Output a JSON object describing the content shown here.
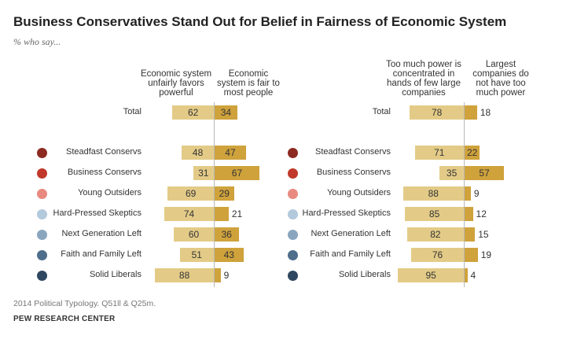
{
  "title": "Business Conservatives Stand Out for Belief in Fairness of Economic System",
  "subtitle": "% who say...",
  "note": "2014 Political Typology. Q51ll & Q25m.",
  "source": "PEW RESEARCH CENTER",
  "colors": {
    "left_bar": "#e3cb87",
    "right_bar": "#cfa23c"
  },
  "chart_data": [
    {
      "type": "bar",
      "orientation": "diverging-horizontal",
      "left_header": "Economic system unfairly favors powerful",
      "right_header": "Economic system is fair to most people",
      "categories": [
        "Total",
        "Steadfast Conservs",
        "Business Conservs",
        "Young Outsiders",
        "Hard-Pressed Skeptics",
        "Next Generation Left",
        "Faith and Family Left",
        "Solid Liberals"
      ],
      "series": [
        {
          "name": "Economic system unfairly favors powerful",
          "values": [
            62,
            48,
            31,
            69,
            74,
            60,
            51,
            88
          ]
        },
        {
          "name": "Economic system is fair to most people",
          "values": [
            34,
            47,
            67,
            29,
            21,
            36,
            43,
            9
          ]
        }
      ]
    },
    {
      "type": "bar",
      "orientation": "diverging-horizontal",
      "left_header": "Too much power is concentrated in hands of few large companies",
      "right_header": "Largest companies do not have too much power",
      "categories": [
        "Total",
        "Steadfast Conservs",
        "Business Conservs",
        "Young Outsiders",
        "Hard-Pressed Skeptics",
        "Next Generation Left",
        "Faith and Family Left",
        "Solid Liberals"
      ],
      "series": [
        {
          "name": "Too much power is concentrated in hands of few large companies",
          "values": [
            78,
            71,
            35,
            88,
            85,
            82,
            76,
            95
          ]
        },
        {
          "name": "Largest companies do not have too much power",
          "values": [
            18,
            22,
            57,
            9,
            12,
            15,
            19,
            4
          ]
        }
      ]
    }
  ],
  "group_colors": [
    "#8c2a22",
    "#c0392b",
    "#e88a80",
    "#b3c9dc",
    "#8aa6bf",
    "#4e6e8c",
    "#2f4760"
  ]
}
